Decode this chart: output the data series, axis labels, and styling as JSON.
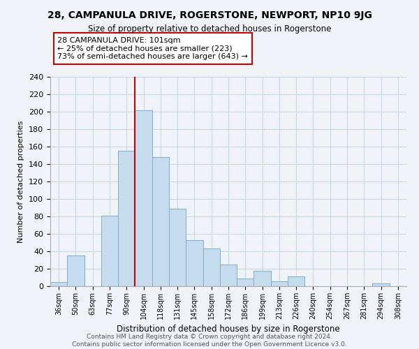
{
  "title": "28, CAMPANULA DRIVE, ROGERSTONE, NEWPORT, NP10 9JG",
  "subtitle": "Size of property relative to detached houses in Rogerstone",
  "xlabel": "Distribution of detached houses by size in Rogerstone",
  "ylabel": "Number of detached properties",
  "bar_color": "#c5dcee",
  "bar_edge_color": "#7eaecf",
  "categories": [
    "36sqm",
    "50sqm",
    "63sqm",
    "77sqm",
    "90sqm",
    "104sqm",
    "118sqm",
    "131sqm",
    "145sqm",
    "158sqm",
    "172sqm",
    "186sqm",
    "199sqm",
    "213sqm",
    "226sqm",
    "240sqm",
    "254sqm",
    "267sqm",
    "281sqm",
    "294sqm",
    "308sqm"
  ],
  "values": [
    5,
    35,
    0,
    81,
    155,
    202,
    148,
    89,
    53,
    43,
    25,
    9,
    18,
    6,
    11,
    0,
    0,
    0,
    0,
    3,
    0
  ],
  "vline_x_index": 4.5,
  "vline_color": "#cc0000",
  "ylim": [
    0,
    240
  ],
  "yticks": [
    0,
    20,
    40,
    60,
    80,
    100,
    120,
    140,
    160,
    180,
    200,
    220,
    240
  ],
  "annotation_title": "28 CAMPANULA DRIVE: 101sqm",
  "annotation_line1": "← 25% of detached houses are smaller (223)",
  "annotation_line2": "73% of semi-detached houses are larger (643) →",
  "footer1": "Contains HM Land Registry data © Crown copyright and database right 2024.",
  "footer2": "Contains public sector information licensed under the Open Government Licence v3.0.",
  "background_color": "#ffffff",
  "grid_color": "#c8d8e8",
  "fig_bg": "#f0f4f8"
}
